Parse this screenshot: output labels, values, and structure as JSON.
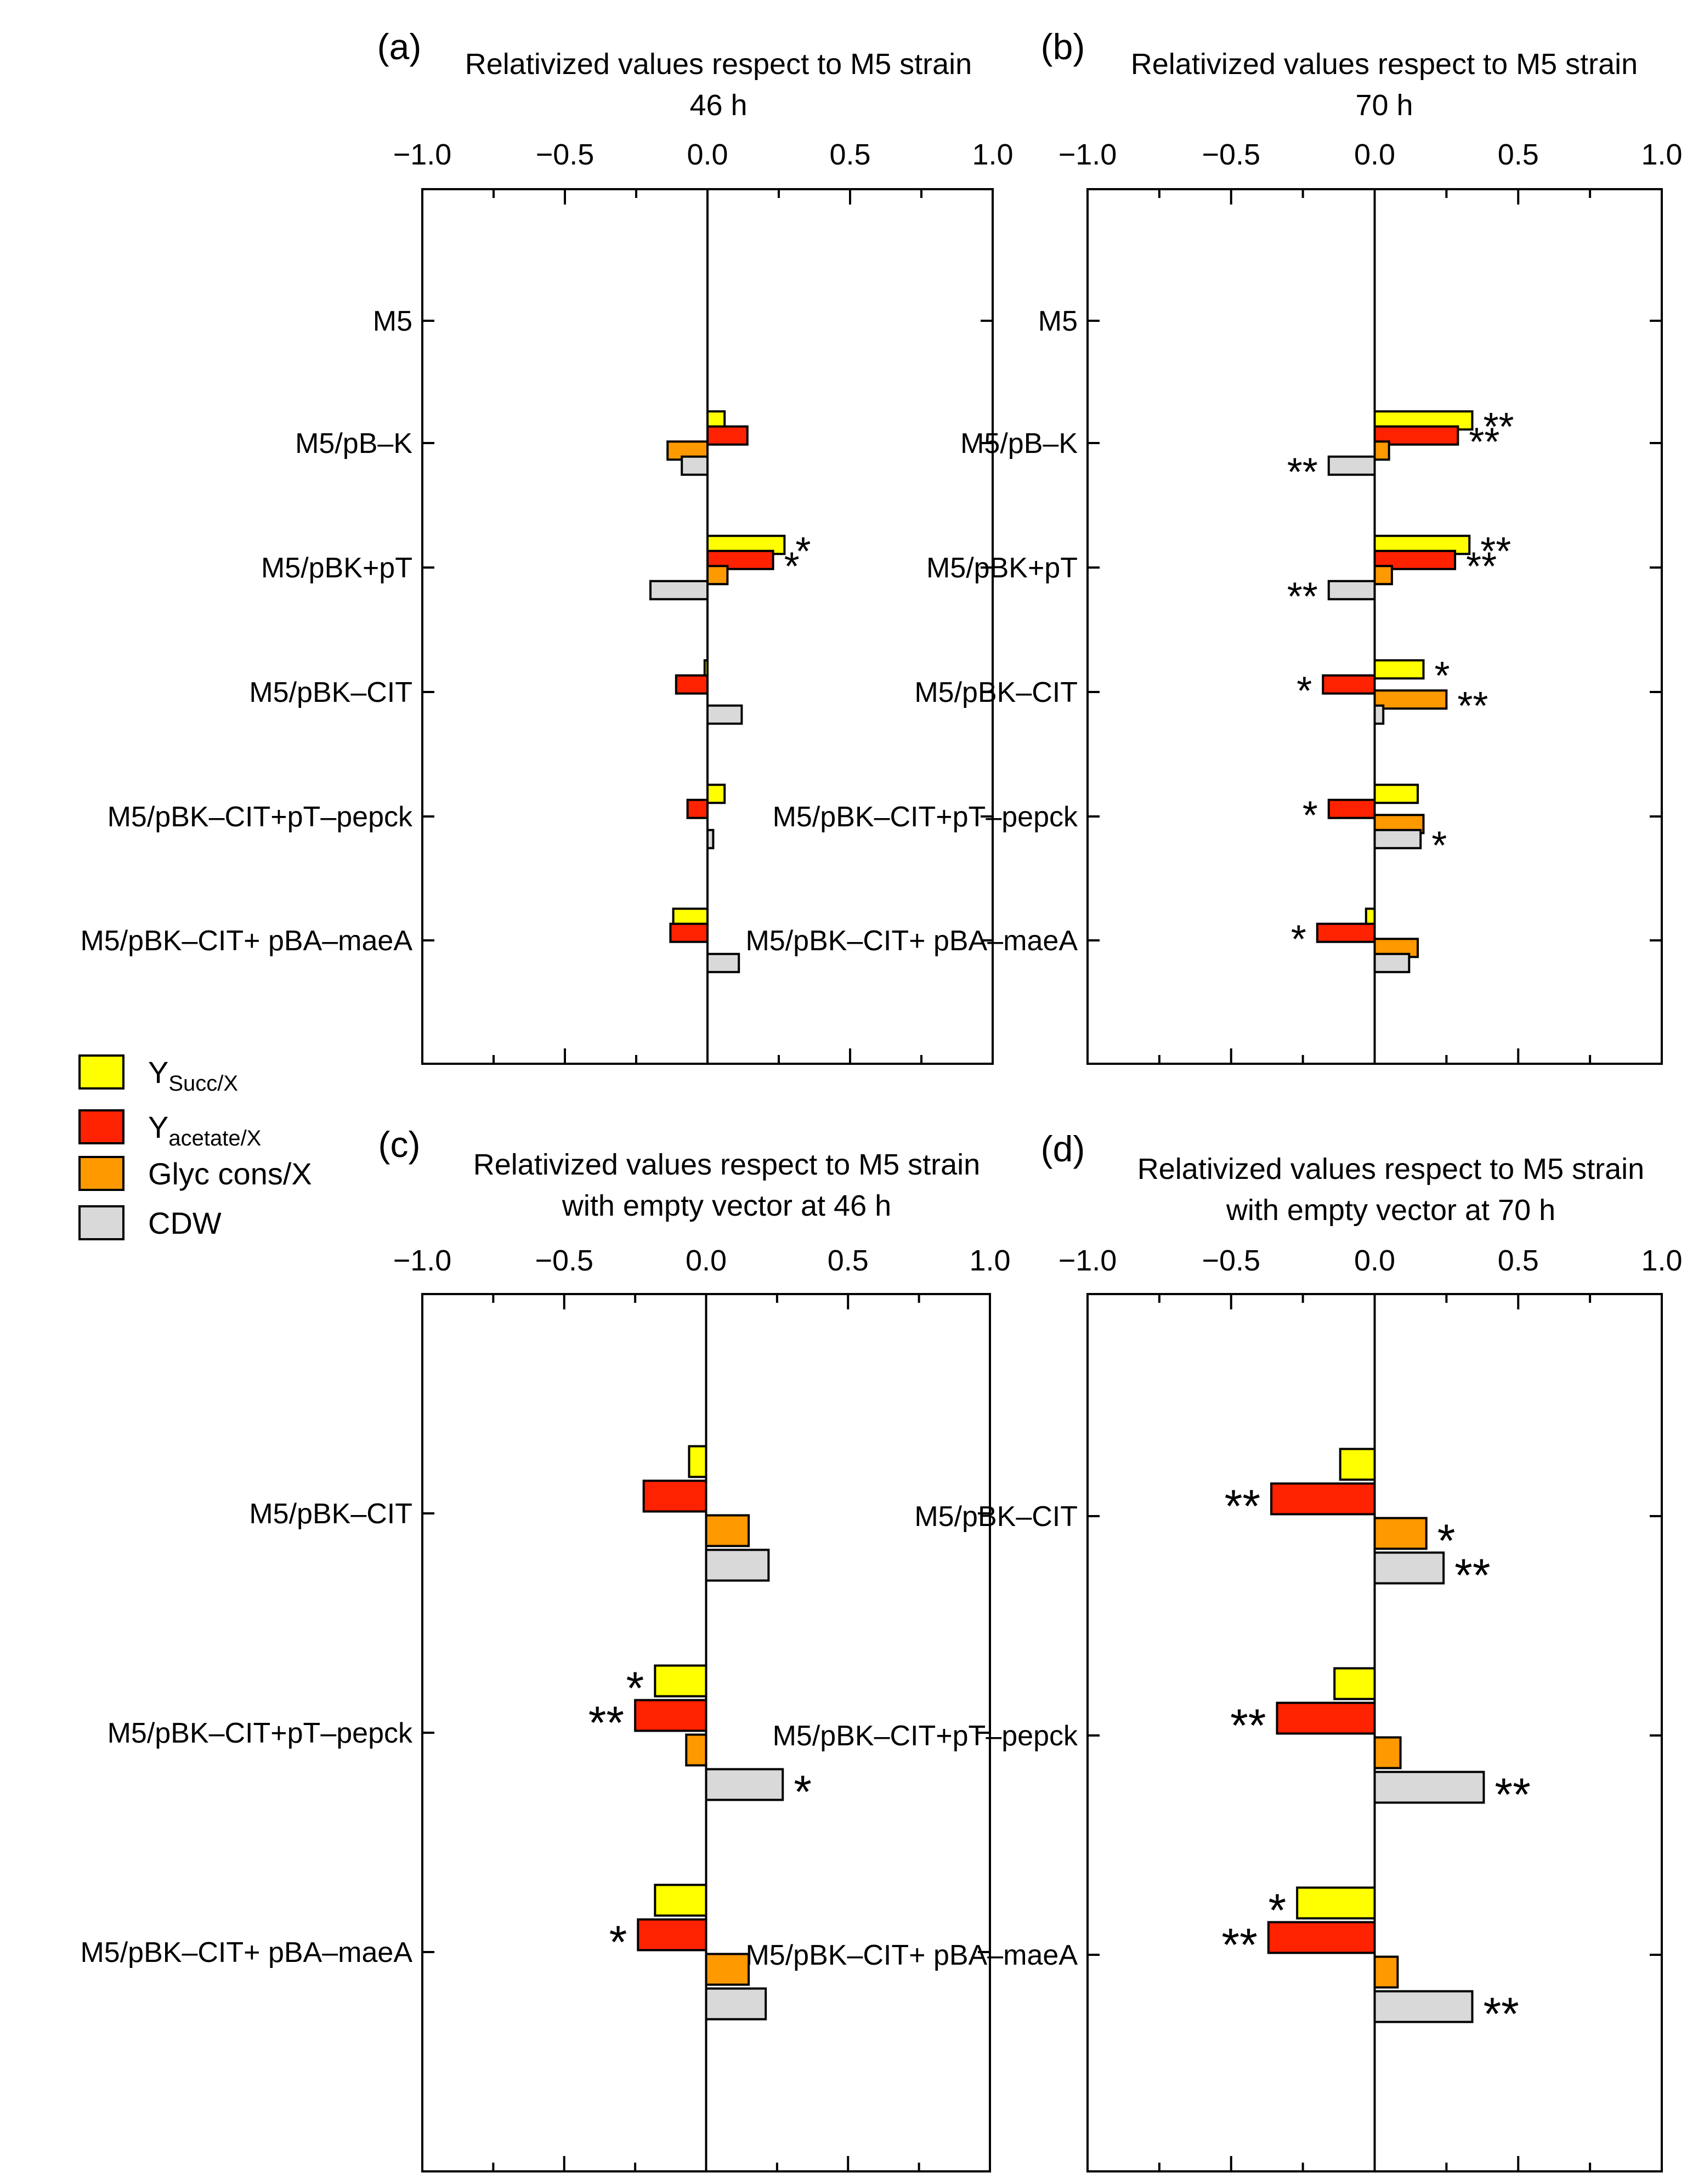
{
  "legend": {
    "entries": [
      {
        "key": "ysucc",
        "main": "Y",
        "sub": "Succ/X",
        "color": "#ffff00"
      },
      {
        "key": "yacet",
        "main": "Y",
        "sub": "acetate/X",
        "color": "#ff2200"
      },
      {
        "key": "glyc",
        "label": "Glyc cons/X",
        "color": "#ff9900"
      },
      {
        "key": "cdw",
        "label": "CDW",
        "color": "#d9d9d9"
      }
    ]
  },
  "chart_data": [
    {
      "type": "bar",
      "orientation": "horizontal",
      "panel_label": "(a)",
      "title_line1": "Relativized values respect to M5 strain",
      "title_line2": "46 h",
      "xlim": [
        -1.0,
        1.0
      ],
      "xticks": [
        "−1.0",
        "−0.5",
        "0.0",
        "0.5",
        "1.0"
      ],
      "categories": [
        "M5",
        "M5/pB–K",
        "M5/pBK+pT",
        "M5/pBK–CIT",
        "M5/pBK–CIT+pT–pepck",
        "M5/pBK–CIT+ pBA–maeA"
      ],
      "series": [
        {
          "name": "Y Succ/X",
          "values": [
            0,
            0.06,
            0.27,
            -0.01,
            0.06,
            -0.12
          ],
          "marks": [
            "",
            "",
            "*",
            "",
            "",
            ""
          ]
        },
        {
          "name": "Y acetate/X",
          "values": [
            0,
            0.14,
            0.23,
            -0.11,
            -0.07,
            -0.13
          ],
          "marks": [
            "",
            "",
            "*",
            "",
            "",
            ""
          ]
        },
        {
          "name": "Glyc cons/X",
          "values": [
            0,
            -0.14,
            0.07,
            0,
            0,
            0
          ],
          "marks": [
            "",
            "",
            "",
            "",
            "",
            ""
          ]
        },
        {
          "name": "CDW",
          "values": [
            0,
            -0.09,
            -0.2,
            0.12,
            0.02,
            0.11
          ],
          "marks": [
            "",
            "",
            "",
            "",
            "",
            ""
          ]
        }
      ]
    },
    {
      "type": "bar",
      "orientation": "horizontal",
      "panel_label": "(b)",
      "title_line1": "Relativized values respect to M5 strain",
      "title_line2": "70 h",
      "xlim": [
        -1.0,
        1.0
      ],
      "xticks": [
        "−1.0",
        "−0.5",
        "0.0",
        "0.5",
        "1.0"
      ],
      "categories": [
        "M5",
        "M5/pB–K",
        "M5/pBK+pT",
        "M5/pBK–CIT",
        "M5/pBK–CIT+pT–pepck",
        "M5/pBK–CIT+ pBA–maeA"
      ],
      "series": [
        {
          "name": "Y Succ/X",
          "values": [
            0,
            0.34,
            0.33,
            0.17,
            0.15,
            -0.03
          ],
          "marks": [
            "",
            "**",
            "**",
            "*",
            "",
            ""
          ]
        },
        {
          "name": "Y acetate/X",
          "values": [
            0,
            0.29,
            0.28,
            -0.18,
            -0.16,
            -0.2
          ],
          "marks": [
            "",
            "**",
            "**",
            "*",
            "*",
            "*"
          ]
        },
        {
          "name": "Glyc cons/X",
          "values": [
            0,
            0.05,
            0.06,
            0.25,
            0.17,
            0.15
          ],
          "marks": [
            "",
            "",
            "",
            "**",
            "",
            ""
          ]
        },
        {
          "name": "CDW",
          "values": [
            0,
            -0.16,
            -0.16,
            0.03,
            0.16,
            0.12
          ],
          "marks": [
            "",
            "**",
            "**",
            "",
            "*",
            ""
          ]
        }
      ]
    },
    {
      "type": "bar",
      "orientation": "horizontal",
      "panel_label": "(c)",
      "title_line1": "Relativized values respect to M5 strain",
      "title_line2": "with empty vector at 46 h",
      "xlim": [
        -1.0,
        1.0
      ],
      "xticks": [
        "−1.0",
        "−0.5",
        "0.0",
        "0.5",
        "1.0"
      ],
      "categories": [
        "M5/pBK–CIT",
        "M5/pBK–CIT+pT–pepck",
        "M5/pBK–CIT+ pBA–maeA"
      ],
      "series": [
        {
          "name": "Y Succ/X",
          "values": [
            -0.06,
            -0.18,
            -0.18
          ],
          "marks": [
            "",
            "*",
            ""
          ]
        },
        {
          "name": "Y acetate/X",
          "values": [
            -0.22,
            -0.25,
            -0.24
          ],
          "marks": [
            "",
            "**",
            "*"
          ]
        },
        {
          "name": "Glyc cons/X",
          "values": [
            0.15,
            -0.07,
            0.15
          ],
          "marks": [
            "",
            "",
            ""
          ]
        },
        {
          "name": "CDW",
          "values": [
            0.22,
            0.27,
            0.21
          ],
          "marks": [
            "",
            "*",
            ""
          ]
        }
      ]
    },
    {
      "type": "bar",
      "orientation": "horizontal",
      "panel_label": "(d)",
      "title_line1": "Relativized values respect to M5 strain",
      "title_line2": "with empty vector at 70 h",
      "xlim": [
        -1.0,
        1.0
      ],
      "xticks": [
        "−1.0",
        "−0.5",
        "0.0",
        "0.5",
        "1.0"
      ],
      "categories": [
        "M5/pBK–CIT",
        "M5/pBK–CIT+pT–pepck",
        "M5/pBK–CIT+ pBA–maeA"
      ],
      "series": [
        {
          "name": "Y Succ/X",
          "values": [
            -0.12,
            -0.14,
            -0.27
          ],
          "marks": [
            "",
            "",
            "*"
          ]
        },
        {
          "name": "Y acetate/X",
          "values": [
            -0.36,
            -0.34,
            -0.37
          ],
          "marks": [
            "**",
            "**",
            "**"
          ]
        },
        {
          "name": "Glyc cons/X",
          "values": [
            0.18,
            0.09,
            0.08
          ],
          "marks": [
            "*",
            "",
            ""
          ]
        },
        {
          "name": "CDW",
          "values": [
            0.24,
            0.38,
            0.34
          ],
          "marks": [
            "**",
            "**",
            "**"
          ]
        }
      ]
    }
  ]
}
